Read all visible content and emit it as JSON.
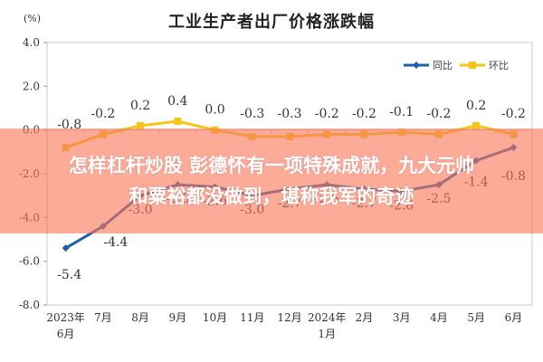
{
  "page": {
    "title": "工业生产者出厂价格涨跌幅",
    "unit_label": "(%)"
  },
  "overlay": {
    "line1": "怎样杠杆炒股 彭德怀有一项特殊成就，九大元帅",
    "line2": "和粟裕都没做到，堪称我军的奇迹",
    "color": "#fa785a"
  },
  "chart_data": {
    "type": "line",
    "title": "工业生产者出厂价格涨跌幅",
    "xlabel": "",
    "ylabel": "(%)",
    "ylim": [
      -8.0,
      4.0
    ],
    "yticks": [
      "4.0",
      "2.0",
      "0.0",
      "-2.0",
      "-4.0",
      "-6.0",
      "-8.0"
    ],
    "grid": false,
    "legend_position": "top-right",
    "categories": [
      "2023年6月",
      "7月",
      "8月",
      "9月",
      "10月",
      "11月",
      "12月",
      "2024年1月",
      "2月",
      "3月",
      "4月",
      "5月",
      "6月"
    ],
    "category_lines": [
      [
        "2023年",
        "6月"
      ],
      [
        "7月"
      ],
      [
        "8月"
      ],
      [
        "9月"
      ],
      [
        "10月"
      ],
      [
        "11月"
      ],
      [
        "12月"
      ],
      [
        "2024年",
        "1月"
      ],
      [
        "2月"
      ],
      [
        "3月"
      ],
      [
        "4月"
      ],
      [
        "5月"
      ],
      [
        "6月"
      ]
    ],
    "series": [
      {
        "name": "同比",
        "color": "#1f5fa8",
        "values": [
          -5.4,
          -4.4,
          -3.0,
          -2.5,
          -2.6,
          -3.0,
          -2.7,
          -2.5,
          -2.7,
          -2.8,
          -2.5,
          -1.4,
          -0.8
        ]
      },
      {
        "name": "环比",
        "color": "#f5c518",
        "values": [
          -0.8,
          -0.2,
          0.2,
          0.4,
          0.0,
          -0.3,
          -0.3,
          -0.2,
          -0.2,
          -0.1,
          -0.2,
          0.2,
          -0.2
        ]
      }
    ]
  }
}
